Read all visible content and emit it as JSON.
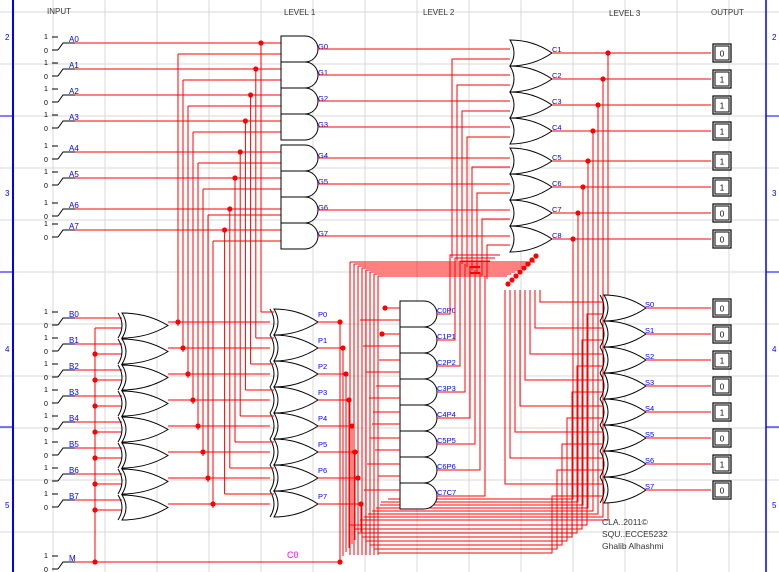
{
  "headers": {
    "input": "INPUT",
    "level1": "LEVEL 1",
    "level2": "LEVEL 2",
    "level3": "LEVEL 3",
    "output": "OUTPUT"
  },
  "row_markers": [
    "2",
    "3",
    "4",
    "5"
  ],
  "switch_labels": {
    "high": "1",
    "low": "0"
  },
  "inputs_a": [
    "A0",
    "A1",
    "A2",
    "A3",
    "A4",
    "A5",
    "A6",
    "A7"
  ],
  "inputs_b": [
    "B0",
    "B1",
    "B2",
    "B3",
    "B4",
    "B5",
    "B6",
    "B7"
  ],
  "input_m": "M",
  "generate_gates": [
    "G0",
    "G1",
    "G2",
    "G3",
    "G4",
    "G5",
    "G6",
    "G7"
  ],
  "propagate_gates": [
    "P0",
    "P1",
    "P2",
    "P3",
    "P4",
    "P5",
    "P6",
    "P7"
  ],
  "carry_gates": [
    "C1",
    "C2",
    "C3",
    "C4",
    "C5",
    "C6",
    "C7",
    "C8"
  ],
  "cp_gates": [
    "C0P0",
    "C1P1",
    "C2P2",
    "C3P3",
    "C4P4",
    "C5P5",
    "C6P6",
    "C7C7"
  ],
  "sum_gates": [
    "S0",
    "S1",
    "S2",
    "S3",
    "S4",
    "S5",
    "S6",
    "S7"
  ],
  "carry_in_label": "C0",
  "carry_outputs": [
    "0",
    "1",
    "1",
    "1",
    "1",
    "1",
    "0",
    "0"
  ],
  "sum_outputs": [
    "0",
    "0",
    "1",
    "0",
    "1",
    "0",
    "1",
    "0"
  ],
  "credits": [
    "CLA..2011©",
    "SQU..ECCE5232",
    "Ghalib Alhashmi"
  ],
  "colors": {
    "wire": "#ff0000",
    "label": "#0000ff",
    "border": "#0000ff",
    "grid": "#d8d8d8",
    "carry_in": "#ff00ff"
  }
}
